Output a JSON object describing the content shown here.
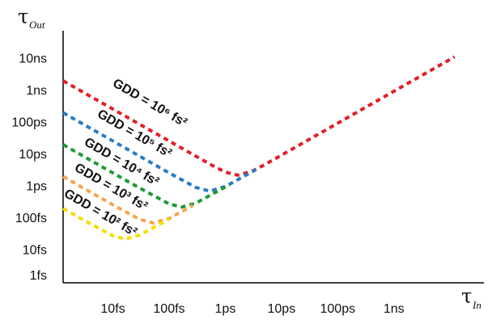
{
  "chart_data": {
    "type": "line",
    "y_label": {
      "symbol": "τ",
      "subscript": "Out"
    },
    "x_label": {
      "symbol": "τ",
      "subscript": "In"
    },
    "log_x": true,
    "log_y": true,
    "xlim": [
      1.3,
      40000000
    ],
    "ylim": [
      1,
      100000000
    ],
    "xticks": [
      {
        "value": 10,
        "label": "10fs"
      },
      {
        "value": 100,
        "label": "100fs"
      },
      {
        "value": 1000,
        "label": "1ps"
      },
      {
        "value": 10000,
        "label": "10ps"
      },
      {
        "value": 100000,
        "label": "100ps"
      },
      {
        "value": 1000000,
        "label": "1ns"
      }
    ],
    "yticks": [
      {
        "value": 1,
        "label": "1fs"
      },
      {
        "value": 10,
        "label": "10fs"
      },
      {
        "value": 100,
        "label": "100fs"
      },
      {
        "value": 1000,
        "label": "1ps"
      },
      {
        "value": 10000,
        "label": "10ps"
      },
      {
        "value": 100000,
        "label": "100ps"
      },
      {
        "value": 1000000,
        "label": "1ns"
      },
      {
        "value": 10000000,
        "label": "10ns"
      }
    ],
    "series": [
      {
        "name": "GDD = 10⁶ fs²",
        "color": "#e02028",
        "x": [
          1.3,
          3,
          10,
          30,
          100,
          300,
          600,
          1000,
          1665,
          3000,
          5000,
          10000,
          100000,
          1000000,
          12000000
        ],
        "values": [
          2133000,
          924000,
          277000,
          92400,
          27700,
          9247,
          4659,
          2948,
          2355,
          3139,
          5031,
          10004,
          100000,
          1000000,
          12000000
        ]
      },
      {
        "name": "GDD = 10⁵ fs²",
        "color": "#2b7cc4",
        "x": [
          1.3,
          3,
          10,
          30,
          100,
          300,
          527,
          1000,
          3500
        ],
        "values": [
          213300,
          92400,
          27700,
          9243,
          2775,
          972,
          745,
          1038,
          3500
        ]
      },
      {
        "name": "GDD = 10⁴ fs²",
        "color": "#1e9a3a",
        "x": [
          1.3,
          3,
          10,
          30,
          100,
          167,
          300,
          1200
        ],
        "values": [
          21328,
          9242,
          2773,
          925,
          295,
          235,
          314,
          1200
        ]
      },
      {
        "name": "GDD = 10³ fs²",
        "color": "#f5a54a",
        "x": [
          1.3,
          3,
          10,
          30,
          52.7,
          100,
          265
        ],
        "values": [
          2133,
          924,
          277,
          97.2,
          74.5,
          103.8,
          265
        ]
      },
      {
        "name": "GDD = 10² fs²",
        "color": "#f2e000",
        "x": [
          1.3,
          3,
          10,
          16.7,
          30,
          100
        ],
        "values": [
          213,
          92.5,
          29.5,
          23.5,
          31.4,
          100
        ]
      }
    ]
  }
}
